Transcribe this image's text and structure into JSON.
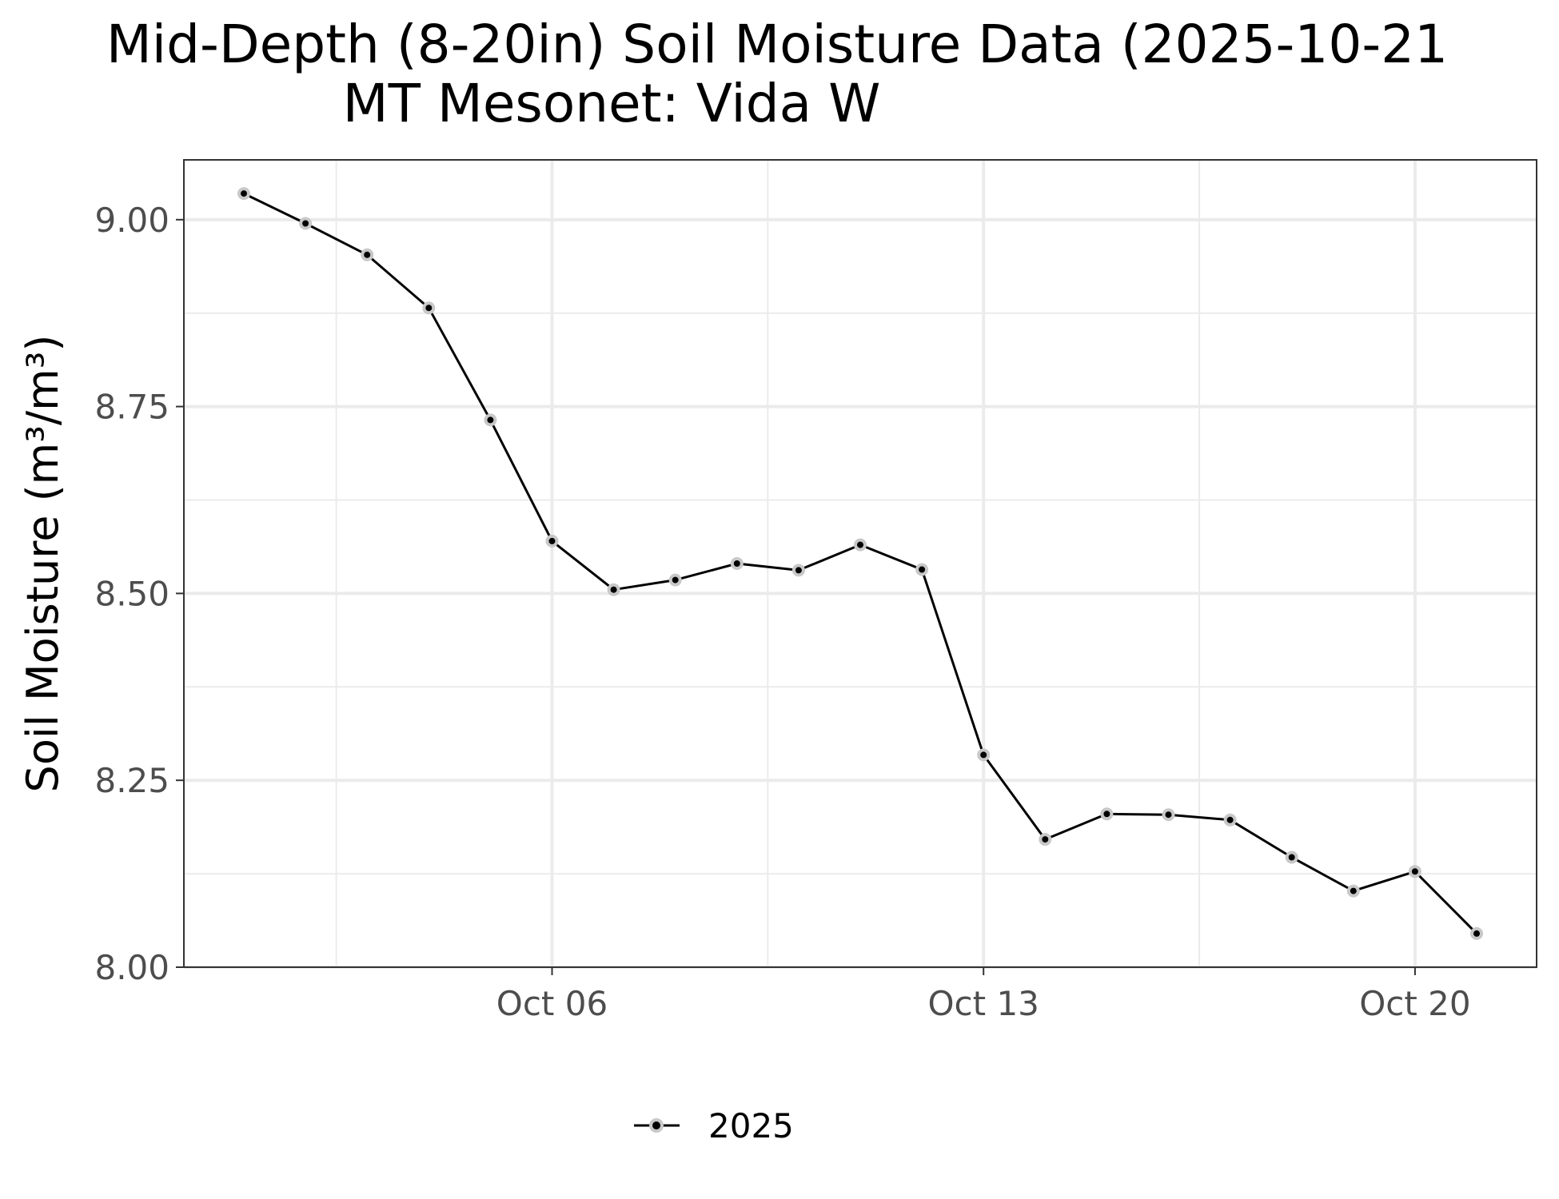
{
  "chart_data": {
    "type": "line",
    "title": "Mid-Depth (8-20in) Soil Moisture Data (2025-10-21",
    "subtitle": "MT Mesonet: Vida W",
    "xlabel": "",
    "ylabel": "Soil Moisture (m³/m³)",
    "ylim": [
      8.0,
      9.08
    ],
    "xlim": [
      "2025-09-30",
      "2025-10-21"
    ],
    "y_ticks": [
      8.0,
      8.25,
      8.5,
      8.75,
      9.0
    ],
    "y_tick_labels": [
      "8.00",
      "8.25",
      "8.50",
      "8.75",
      "9.00"
    ],
    "x_ticks": [
      "2025-10-06",
      "2025-10-13",
      "2025-10-20"
    ],
    "x_tick_labels": [
      "Oct 06",
      "Oct 13",
      "Oct 20"
    ],
    "grid": true,
    "legend_position": "bottom",
    "colors": {
      "line": "#000000",
      "point_fill": "#000000",
      "point_halo": "#c8c8c8",
      "grid": "#ebebeb",
      "panel_border": "#333333"
    },
    "series": [
      {
        "name": "2025",
        "x": [
          "2025-10-01",
          "2025-10-02",
          "2025-10-03",
          "2025-10-04",
          "2025-10-05",
          "2025-10-06",
          "2025-10-07",
          "2025-10-08",
          "2025-10-09",
          "2025-10-10",
          "2025-10-11",
          "2025-10-12",
          "2025-10-13",
          "2025-10-14",
          "2025-10-15",
          "2025-10-16",
          "2025-10-17",
          "2025-10-18",
          "2025-10-19",
          "2025-10-20",
          "2025-10-21"
        ],
        "values": [
          9.035,
          8.995,
          8.953,
          8.882,
          8.732,
          8.57,
          8.505,
          8.518,
          8.54,
          8.531,
          8.565,
          8.532,
          8.284,
          8.171,
          8.205,
          8.204,
          8.197,
          8.147,
          8.102,
          8.128,
          8.045
        ]
      }
    ]
  }
}
